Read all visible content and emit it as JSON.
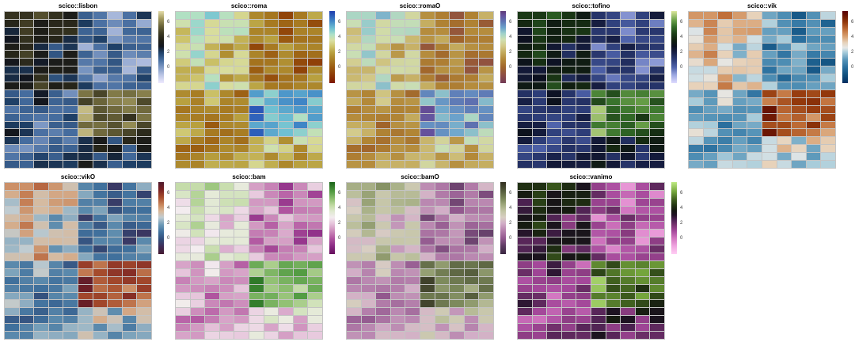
{
  "figure": {
    "background_color": "#ffffff",
    "grid_line_color": "rgba(125,125,125,0.45)",
    "tick_label_color": "#3c3c3c"
  },
  "chart_data": {
    "type": "heatmap",
    "title": "",
    "layout": {
      "grid_rows": 2,
      "grid_cols": 5,
      "panel_count": 9,
      "legend_position": "right-of-each-panel",
      "axis_labels": false,
      "grid_lines": true
    },
    "panels": [
      {
        "title": "scico::lisbon",
        "palette": "lisbon"
      },
      {
        "title": "scico::roma",
        "palette": "roma"
      },
      {
        "title": "scico::romaO",
        "palette": "romaO"
      },
      {
        "title": "scico::tofino",
        "palette": "tofino"
      },
      {
        "title": "scico::vik",
        "palette": "vik"
      },
      {
        "title": "scico::vikO",
        "palette": "vikO"
      },
      {
        "title": "scico::bam",
        "palette": "bam"
      },
      {
        "title": "scico::bamO",
        "palette": "bamO"
      },
      {
        "title": "scico::vanimo",
        "palette": "vanimo"
      }
    ],
    "value_domain": [
      -2.1,
      7.5
    ],
    "colorbar_ticks": [
      6,
      4,
      2,
      0
    ],
    "shared_matrix": {
      "n_rows": 20,
      "n_cols": 10,
      "note": "same data matrix shown in every panel; two 10x5 high blocks (top-left ~3-4, bottom-right rows 11-16 ~5-7) and low blocks (~0-2)",
      "values": [
        [
          4.3,
          4.3,
          5.0,
          4.2,
          3.3,
          1.3,
          0.8,
          -0.7,
          0.9,
          2.2
        ],
        [
          3.8,
          4.6,
          3.4,
          3.9,
          3.9,
          2.1,
          0.9,
          0.3,
          0.9,
          -0.4
        ],
        [
          2.5,
          4.6,
          3.5,
          4.1,
          4.2,
          1.2,
          1.2,
          -0.6,
          1.1,
          1.2
        ],
        [
          2.8,
          4.2,
          3.5,
          3.8,
          2.4,
          1.4,
          2.0,
          0.0,
          0.7,
          0.8
        ],
        [
          3.4,
          3.9,
          2.4,
          1.4,
          2.2,
          -0.6,
          0.9,
          2.0,
          1.3,
          1.2
        ],
        [
          3.8,
          4.7,
          3.3,
          1.5,
          3.4,
          1.2,
          0.2,
          1.4,
          0.3,
          0.6
        ],
        [
          3.0,
          4.0,
          2.7,
          3.3,
          3.4,
          0.7,
          0.8,
          1.5,
          -0.5,
          -0.8
        ],
        [
          2.3,
          2.3,
          3.4,
          3.5,
          3.4,
          0.1,
          1.3,
          1.3,
          -0.7,
          1.4
        ],
        [
          2.4,
          2.8,
          4.2,
          1.6,
          2.2,
          0.8,
          -0.3,
          0.7,
          0.8,
          2.0
        ],
        [
          3.3,
          3.3,
          4.8,
          3.5,
          3.8,
          2.1,
          0.9,
          0.8,
          1.2,
          1.3
        ],
        [
          1.4,
          1.0,
          2.7,
          1.3,
          0.2,
          5.8,
          4.8,
          5.9,
          5.7,
          6.0
        ],
        [
          2.0,
          1.1,
          2.9,
          1.2,
          1.4,
          4.7,
          5.5,
          6.0,
          6.2,
          4.9
        ],
        [
          0.8,
          1.2,
          1.4,
          0.9,
          1.0,
          7.0,
          5.2,
          5.6,
          5.9,
          5.6
        ],
        [
          1.2,
          1.0,
          0.8,
          1.0,
          2.0,
          6.8,
          4.9,
          5.3,
          4.3,
          5.8
        ],
        [
          2.1,
          2.0,
          0.0,
          1.3,
          1.4,
          5.6,
          5.7,
          5.1,
          6.2,
          4.8
        ],
        [
          2.9,
          2.2,
          0.9,
          0.6,
          1.0,
          6.9,
          5.6,
          5.2,
          4.8,
          4.0
        ],
        [
          2.2,
          1.0,
          0.4,
          1.2,
          0.6,
          2.3,
          3.2,
          1.5,
          3.9,
          3.4
        ],
        [
          0.3,
          0.1,
          0.7,
          1.4,
          1.2,
          2.4,
          3.8,
          3.2,
          1.3,
          3.3
        ],
        [
          0.8,
          1.2,
          1.9,
          1.3,
          2.3,
          2.4,
          1.4,
          2.5,
          1.1,
          2.2
        ],
        [
          1.4,
          1.2,
          2.3,
          2.2,
          2.1,
          3.3,
          2.3,
          1.3,
          2.0,
          2.1
        ]
      ]
    },
    "palettes": {
      "lisbon": {
        "stops": [
          [
            -2.1,
            "#eeeaff"
          ],
          [
            -1,
            "#b9c4e4"
          ],
          [
            0,
            "#7d98c4"
          ],
          [
            1,
            "#456c9e"
          ],
          [
            2,
            "#1f4067"
          ],
          [
            2.8,
            "#12161f"
          ],
          [
            3.6,
            "#201f17"
          ],
          [
            4.5,
            "#3b3822"
          ],
          [
            5.5,
            "#6a6439"
          ],
          [
            6.5,
            "#a39a5f"
          ],
          [
            7.5,
            "#e4dcaa"
          ]
        ]
      },
      "roma": {
        "stops": [
          [
            -2.1,
            "#7e1700"
          ],
          [
            -1,
            "#8c3a06"
          ],
          [
            0,
            "#9a5a10"
          ],
          [
            1,
            "#a87d24"
          ],
          [
            2,
            "#b8a03f"
          ],
          [
            2.8,
            "#cdc46c"
          ],
          [
            3.6,
            "#d9e0a4"
          ],
          [
            4.4,
            "#abe0c8"
          ],
          [
            5.2,
            "#6fc0d2"
          ],
          [
            6.2,
            "#3f85c6"
          ],
          [
            7.5,
            "#1e3cae"
          ]
        ]
      },
      "romaO": {
        "stops": [
          [
            -2.1,
            "#723a56"
          ],
          [
            -1,
            "#8d4e44"
          ],
          [
            0,
            "#a0642b"
          ],
          [
            1,
            "#b18535"
          ],
          [
            2,
            "#c3aa5c"
          ],
          [
            2.9,
            "#d3cb8c"
          ],
          [
            3.7,
            "#cfe0b1"
          ],
          [
            4.5,
            "#9fd2ca"
          ],
          [
            5.3,
            "#6ba2cb"
          ],
          [
            6.1,
            "#5d75b3"
          ],
          [
            6.9,
            "#65519c"
          ],
          [
            7.5,
            "#5e3a78"
          ]
        ]
      },
      "tofino": {
        "stops": [
          [
            -2.1,
            "#dedaff"
          ],
          [
            -1,
            "#9aa6e0"
          ],
          [
            0,
            "#4f63ab"
          ],
          [
            1,
            "#2d3d78"
          ],
          [
            2,
            "#171f45"
          ],
          [
            2.8,
            "#0c101f"
          ],
          [
            3.6,
            "#11200f"
          ],
          [
            4.5,
            "#1d3f18"
          ],
          [
            5.4,
            "#336d28"
          ],
          [
            6.3,
            "#6ba24a"
          ],
          [
            7.5,
            "#dbe69b"
          ]
        ]
      },
      "vik": {
        "stops": [
          [
            -2.1,
            "#032e61"
          ],
          [
            -1,
            "#10507e"
          ],
          [
            0,
            "#2a6f9e"
          ],
          [
            1,
            "#5694b8"
          ],
          [
            2,
            "#a8ccda"
          ],
          [
            2.6,
            "#e6e8e7"
          ],
          [
            3.3,
            "#e7d2ba"
          ],
          [
            4.1,
            "#d8a172"
          ],
          [
            5,
            "#c06f3a"
          ],
          [
            6,
            "#93380b"
          ],
          [
            7,
            "#671303"
          ],
          [
            7.5,
            "#590008"
          ]
        ]
      },
      "vikO": {
        "stops": [
          [
            -2.1,
            "#441930"
          ],
          [
            -1.1,
            "#3f2c56"
          ],
          [
            -0.2,
            "#324a77"
          ],
          [
            0.8,
            "#40709c"
          ],
          [
            1.8,
            "#6c99b6"
          ],
          [
            2.8,
            "#c0ccd1"
          ],
          [
            3.6,
            "#d8b89a"
          ],
          [
            4.5,
            "#c8855a"
          ],
          [
            5.5,
            "#a54b2c"
          ],
          [
            6.5,
            "#792123"
          ],
          [
            7.5,
            "#4f1a2e"
          ]
        ]
      },
      "bam": {
        "stops": [
          [
            -2.1,
            "#650f5c"
          ],
          [
            -1,
            "#8b2b85"
          ],
          [
            0,
            "#b0549f"
          ],
          [
            1,
            "#cd8ebc"
          ],
          [
            2,
            "#e6c5db"
          ],
          [
            2.8,
            "#f3ecef"
          ],
          [
            3.6,
            "#e0e9d0"
          ],
          [
            4.4,
            "#c1daa4"
          ],
          [
            5.2,
            "#92c174"
          ],
          [
            6.2,
            "#539c43"
          ],
          [
            7.5,
            "#1a6318"
          ]
        ]
      },
      "bamO": {
        "stops": [
          [
            -2.1,
            "#392640"
          ],
          [
            -1,
            "#5e3b63"
          ],
          [
            0,
            "#92588e"
          ],
          [
            1,
            "#b47fab"
          ],
          [
            2,
            "#d2aec7"
          ],
          [
            2.8,
            "#d8cec2"
          ],
          [
            3.6,
            "#c3c5a5"
          ],
          [
            4.4,
            "#a2ab80"
          ],
          [
            5.2,
            "#7d8a5c"
          ],
          [
            6.2,
            "#575f3e"
          ],
          [
            7.5,
            "#302e1f"
          ]
        ]
      },
      "vanimo": {
        "stops": [
          [
            -2.1,
            "#ffcdf4"
          ],
          [
            -1,
            "#efa3de"
          ],
          [
            0,
            "#d377c1"
          ],
          [
            1,
            "#a4489a"
          ],
          [
            1.8,
            "#77336f"
          ],
          [
            2.5,
            "#4b2150"
          ],
          [
            3.1,
            "#1f1224"
          ],
          [
            3.7,
            "#141711"
          ],
          [
            4.4,
            "#223413"
          ],
          [
            5.2,
            "#40601f"
          ],
          [
            6.2,
            "#74a53c"
          ],
          [
            7.5,
            "#beea83"
          ]
        ]
      }
    }
  }
}
